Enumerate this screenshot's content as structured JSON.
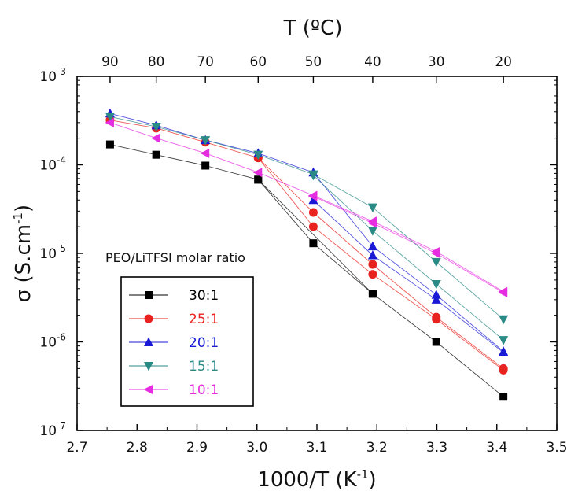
{
  "chart_data": {
    "type": "scatter",
    "xlabel": "1000/T (K",
    "xlabel_sup": "-1",
    "xlabel_close": ")",
    "ylabel": "σ (S.cm",
    "ylabel_sup": "-1",
    "ylabel_close": ")",
    "top_label": "T (ºC)",
    "xlim": [
      2.7,
      3.5
    ],
    "x_ticks": [
      2.7,
      2.8,
      2.9,
      3.0,
      3.1,
      3.2,
      3.3,
      3.4,
      3.5
    ],
    "x_tick_labels": [
      "2.7",
      "2.8",
      "2.9",
      "3.0",
      "3.1",
      "3.2",
      "3.3",
      "3.4",
      "3.5"
    ],
    "ylim": [
      1e-07,
      0.001
    ],
    "yscale": "log",
    "y_ticks": [
      {
        "value": 0.001,
        "base": "10",
        "exp": "-3"
      },
      {
        "value": 0.0001,
        "base": "10",
        "exp": "-4"
      },
      {
        "value": 1e-05,
        "base": "10",
        "exp": "-5"
      },
      {
        "value": 1e-06,
        "base": "10",
        "exp": "-6"
      },
      {
        "value": 1e-07,
        "base": "10",
        "exp": "-7"
      }
    ],
    "top_ticks": [
      {
        "x": 2.755,
        "label": "90"
      },
      {
        "x": 2.832,
        "label": "80"
      },
      {
        "x": 2.914,
        "label": "70"
      },
      {
        "x": 3.002,
        "label": "60"
      },
      {
        "x": 3.094,
        "label": "50"
      },
      {
        "x": 3.193,
        "label": "40"
      },
      {
        "x": 3.299,
        "label": "30"
      },
      {
        "x": 3.411,
        "label": "20"
      }
    ],
    "legend": {
      "title": "PEO/LiTFSI molar ratio",
      "position": "lower-left"
    },
    "series": [
      {
        "name": "30:1",
        "color": "#000000",
        "marker": "square",
        "segments": [
          [
            [
              2.755,
              0.00017
            ],
            [
              2.832,
              0.00013
            ],
            [
              2.914,
              9.8e-05
            ],
            [
              3.002,
              6.8e-05
            ],
            [
              3.094,
              1.3e-05
            ],
            [
              3.193,
              3.5e-06
            ],
            [
              3.299,
              1e-06
            ],
            [
              3.411,
              2.4e-07
            ]
          ],
          [
            [
              3.002,
              6.8e-05
            ],
            [
              3.193,
              3.5e-06
            ]
          ]
        ]
      },
      {
        "name": "25:1",
        "color": "#e8231f",
        "marker": "circle",
        "segments": [
          [
            [
              2.755,
              0.00032
            ],
            [
              2.832,
              0.00026
            ],
            [
              2.914,
              0.00018
            ],
            [
              3.002,
              0.00012
            ],
            [
              3.094,
              2.9e-05
            ],
            [
              3.193,
              7.5e-06
            ],
            [
              3.299,
              1.9e-06
            ],
            [
              3.411,
              5e-07
            ]
          ],
          [
            [
              3.002,
              0.00012
            ],
            [
              3.094,
              2e-05
            ],
            [
              3.193,
              5.8e-06
            ],
            [
              3.299,
              1.8e-06
            ],
            [
              3.411,
              4.8e-07
            ]
          ]
        ]
      },
      {
        "name": "20:1",
        "color": "#1a1ad6",
        "marker": "triangle-up",
        "segments": [
          [
            [
              2.755,
              0.00038
            ],
            [
              2.832,
              0.00028
            ],
            [
              2.914,
              0.00019
            ],
            [
              3.002,
              0.000135
            ],
            [
              3.094,
              8.2e-05
            ],
            [
              3.193,
              1.2e-05
            ],
            [
              3.299,
              3.4e-06
            ],
            [
              3.411,
              7.8e-07
            ]
          ],
          [
            [
              3.094,
              4e-05
            ],
            [
              3.193,
              9.5e-06
            ],
            [
              3.299,
              3e-06
            ],
            [
              3.411,
              7.6e-07
            ]
          ]
        ]
      },
      {
        "name": "15:1",
        "color": "#2a8a86",
        "marker": "triangle-down",
        "segments": [
          [
            [
              2.755,
              0.00035
            ],
            [
              2.832,
              0.00027
            ],
            [
              2.914,
              0.00019
            ],
            [
              3.002,
              0.00013
            ],
            [
              3.094,
              7.8e-05
            ],
            [
              3.193,
              3.3e-05
            ],
            [
              3.299,
              8e-06
            ],
            [
              3.411,
              1.8e-06
            ]
          ],
          [
            [
              3.094,
              7.6e-05
            ],
            [
              3.193,
              1.8e-05
            ],
            [
              3.299,
              4.5e-06
            ],
            [
              3.411,
              1.05e-06
            ]
          ]
        ]
      },
      {
        "name": "10:1",
        "color": "#e62ee0",
        "marker": "triangle-left",
        "segments": [
          [
            [
              2.755,
              0.0003
            ],
            [
              2.832,
              0.0002
            ],
            [
              2.914,
              0.000135
            ],
            [
              3.002,
              8.2e-05
            ],
            [
              3.094,
              4.5e-05
            ],
            [
              3.193,
              2.3e-05
            ],
            [
              3.299,
              1.05e-05
            ],
            [
              3.411,
              3.7e-06
            ]
          ],
          [
            [
              3.094,
              4.4e-05
            ],
            [
              3.193,
              2.2e-05
            ],
            [
              3.299,
              1e-05
            ],
            [
              3.411,
              3.6e-06
            ]
          ]
        ]
      }
    ]
  }
}
